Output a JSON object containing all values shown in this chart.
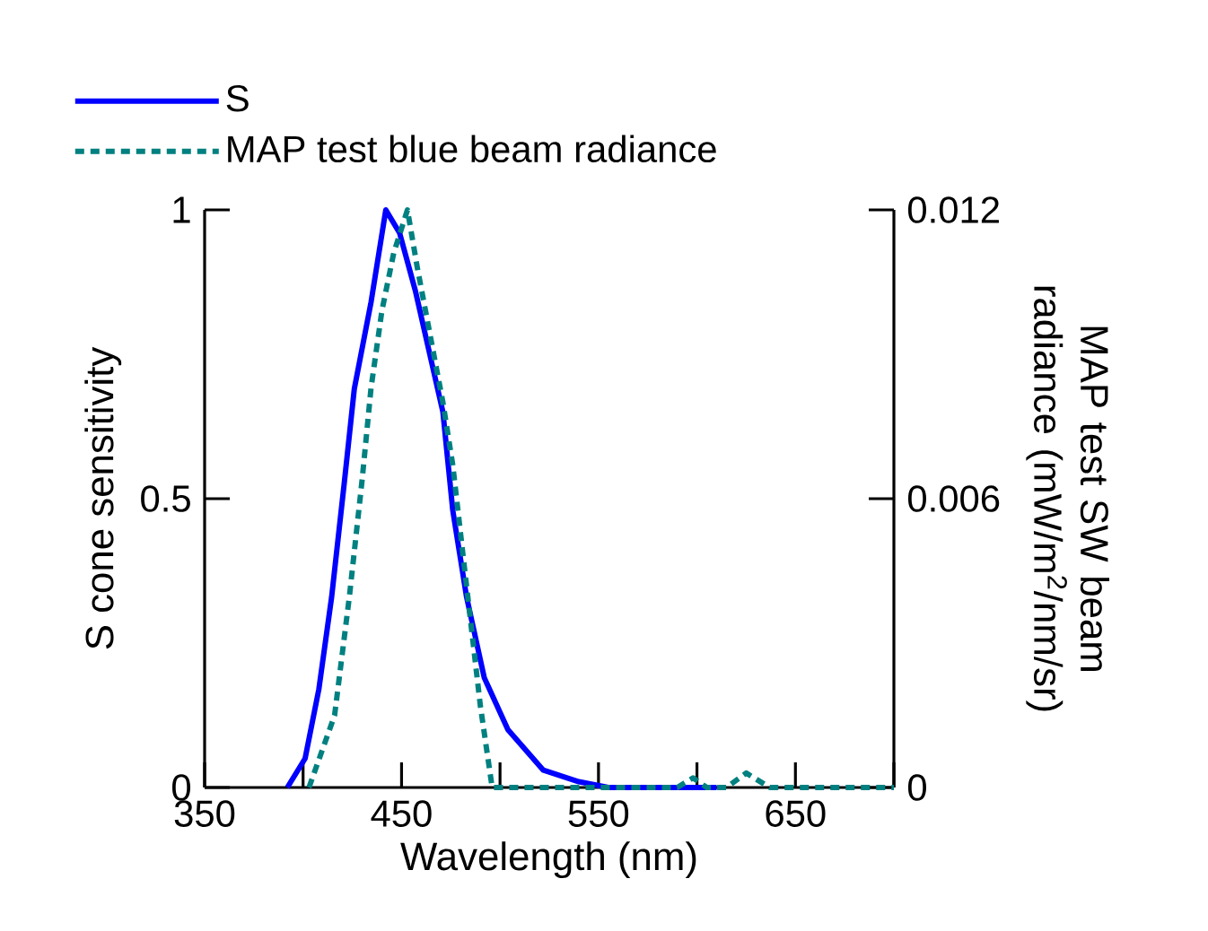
{
  "chart_data": {
    "type": "line",
    "xlabel": "Wavelength (nm)",
    "ylabel": "S cone sensitivity",
    "y2label": "MAP test SW beam radiance (mW/m$^{2}$/nm/sr)",
    "xlim": [
      350,
      700
    ],
    "xticks": [
      350,
      {
        "value": 400,
        "label": null
      },
      450,
      {
        "value": 500,
        "label": null
      },
      550,
      {
        "value": 600,
        "label": null
      },
      650,
      {
        "value": 700,
        "label": null
      }
    ],
    "ylim": [
      0,
      1
    ],
    "yticks": [
      0,
      0.5,
      1
    ],
    "y2lim": [
      0,
      0.012
    ],
    "y2ticks": [
      0,
      0.006,
      0.012
    ],
    "legend": "top left",
    "marker": "none",
    "series": [
      {
        "name": "S",
        "color": "#0000ff",
        "line_style": "solid",
        "x": [
          392,
          401,
          408,
          414.5,
          421,
          426,
          434.5,
          442,
          449,
          457,
          463,
          471,
          476,
          483,
          492,
          504,
          522,
          540,
          555,
          580,
          610
        ],
        "values": [
          0,
          0.05,
          0.17,
          0.33,
          0.53,
          0.69,
          0.84,
          1.0,
          0.96,
          0.86,
          0.77,
          0.65,
          0.48,
          0.33,
          0.19,
          0.1,
          0.03,
          0.01,
          0,
          0,
          0
        ]
      },
      {
        "name": "MAP test blue beam radiance",
        "color": "#008080",
        "line_style": "dotted",
        "axis": "y2",
        "x": [
          403,
          416,
          423.6,
          430,
          434.5,
          440,
          446,
          453,
          458,
          464.5,
          471,
          476,
          481,
          485.5,
          490,
          496,
          500,
          580,
          590,
          598,
          605,
          615,
          625,
          637,
          700
        ],
        "values": [
          0,
          0.0015,
          0.004,
          0.0064,
          0.0083,
          0.0099,
          0.0111,
          0.012,
          0.0108,
          0.0094,
          0.008,
          0.0067,
          0.0049,
          0.0033,
          0.0017,
          0,
          0,
          0,
          0,
          0.0002,
          0,
          0,
          0.0003,
          0,
          0
        ]
      }
    ]
  }
}
